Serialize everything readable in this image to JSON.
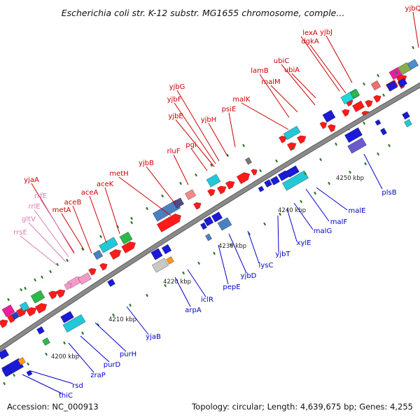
{
  "header": {
    "title": "Escherichia coli str. K-12 substr. MG1655 chromosome, comple..."
  },
  "footer": {
    "accession": "Accession: NC_000913",
    "summary": "Topology: circular; Length: 4,639,675 bp; Genes: 4,255"
  },
  "colors": {
    "forward_label": "#cc0000",
    "reverse_label": "#0000cc",
    "rna_label": "#e07ab8",
    "backbone": "#8a8a8a"
  },
  "scale": {
    "ticks": [
      "4200 kbp",
      "4210 kbp",
      "4220 kbp",
      "4230 kbp",
      "4240 kbp",
      "4250 kbp"
    ]
  },
  "genes": {
    "forward": [
      "yjbQ",
      "lexA",
      "yjbJ",
      "dgkA",
      "ubiC",
      "lamB",
      "ubiA",
      "malM",
      "yjbG",
      "malK",
      "yjbF",
      "psiE",
      "yjbE",
      "yjbH",
      "rluF",
      "pgi",
      "yjbB",
      "metH",
      "aceK",
      "aceA",
      "aceB",
      "metA",
      "yjaA"
    ],
    "reverse": [
      "plsB",
      "malE",
      "malF",
      "xylE",
      "malG",
      "yjbT",
      "lysC",
      "yjbD",
      "pepE",
      "iclR",
      "arpA",
      "yjaB",
      "purH",
      "purD",
      "zraP",
      "rsd",
      "thiC"
    ],
    "rna": [
      "rrfE",
      "rrlE",
      "gltV",
      "rrsE"
    ]
  }
}
